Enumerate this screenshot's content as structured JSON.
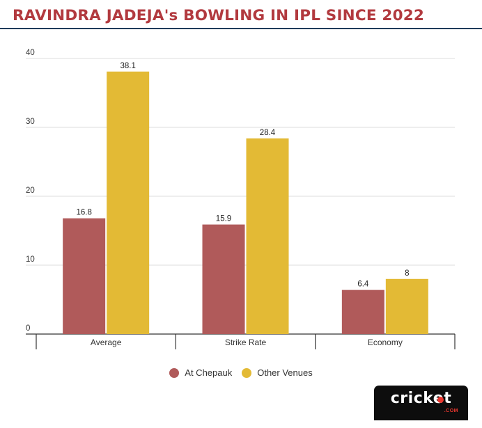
{
  "title": "RAVINDRA JADEJA's BOWLING IN IPL SINCE 2022",
  "colors": {
    "title": "#b23a3f",
    "series1": "#b05a5a",
    "series2": "#e3ba35",
    "logo_bg": "#0d0d0d",
    "logo_accent": "#e8372f"
  },
  "logo": {
    "word": "cricket",
    "sub": ".COM"
  },
  "chart_data": {
    "type": "bar",
    "title": "RAVINDRA JADEJA's BOWLING IN IPL SINCE 2022",
    "categories": [
      "Average",
      "Strike Rate",
      "Economy"
    ],
    "series": [
      {
        "name": "At Chepauk",
        "values": [
          16.8,
          15.9,
          6.4
        ],
        "labels": [
          "16.8",
          "15.9",
          "6.4"
        ],
        "color": "#b05a5a"
      },
      {
        "name": "Other Venues",
        "values": [
          38.1,
          28.4,
          8
        ],
        "labels": [
          "38.1",
          "28.4",
          "8"
        ],
        "color": "#e3ba35"
      }
    ],
    "yticks": [
      0,
      10,
      20,
      30,
      40
    ],
    "ylim": [
      0,
      40
    ],
    "xlabel": "",
    "ylabel": "",
    "grid": true,
    "legend": "bottom-center"
  }
}
